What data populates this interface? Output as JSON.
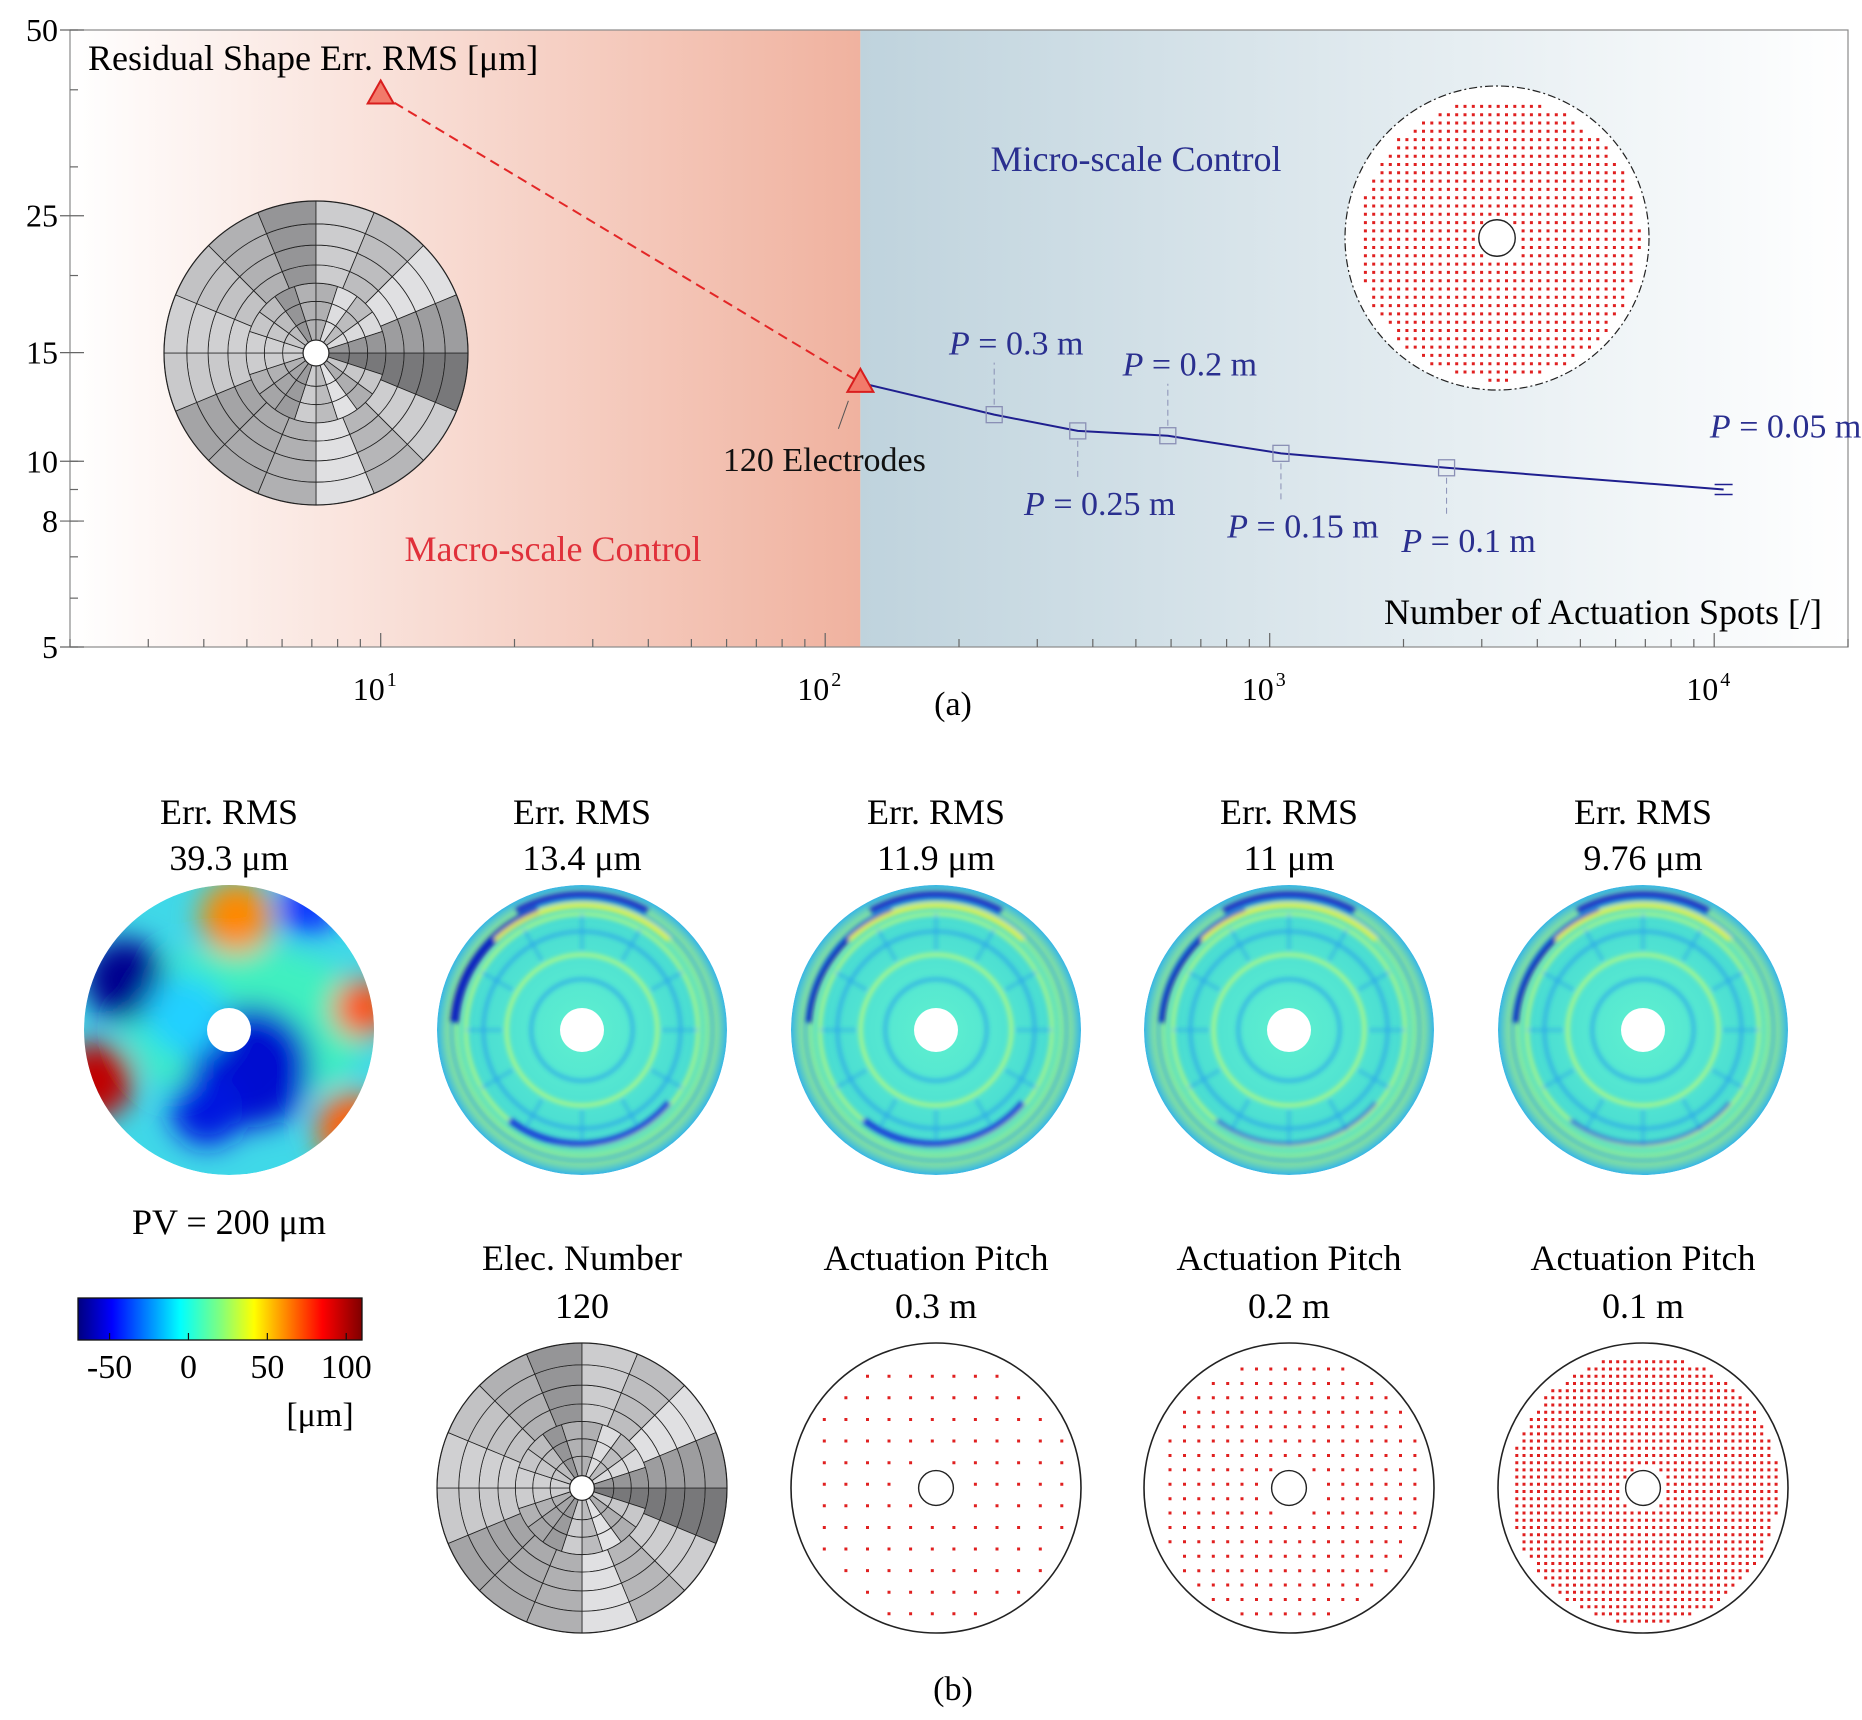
{
  "chart_data": [
    {
      "type": "line",
      "panel_label": "(a)",
      "ylabel": "Residual Shape Err. RMS [μm]",
      "xlabel": "Number of Actuation Spots [/]",
      "x_scale": "log",
      "y_scale": "log",
      "xlim": [
        2,
        20000
      ],
      "ylim": [
        5,
        50
      ],
      "x_ticks": [
        {
          "value": 10,
          "base": "10",
          "exp": "1"
        },
        {
          "value": 100,
          "base": "10",
          "exp": "2"
        },
        {
          "value": 1000,
          "base": "10",
          "exp": "3"
        },
        {
          "value": 10000,
          "base": "10",
          "exp": "4"
        }
      ],
      "y_ticks": [
        {
          "value": 5,
          "label": "5"
        },
        {
          "value": 8,
          "label": "8"
        },
        {
          "value": 10,
          "label": "10"
        },
        {
          "value": 15,
          "label": "15"
        },
        {
          "value": 25,
          "label": "25"
        },
        {
          "value": 50,
          "label": "50"
        }
      ],
      "regions": [
        {
          "label": "Macro-scale Control",
          "x_range": [
            2,
            120
          ],
          "color": "#e8836a"
        },
        {
          "label": "Micro-scale Control",
          "x_range": [
            120,
            20000
          ],
          "color": "#9fbccb"
        }
      ],
      "series": [
        {
          "marker": "triangle",
          "line": "dashed",
          "color": "#e32626",
          "points": [
            {
              "x": 10,
              "y": 39.3
            },
            {
              "x": 120,
              "y": 13.4,
              "annotation": "120 Electrodes"
            }
          ]
        },
        {
          "marker": "square",
          "line": "solid",
          "color": "#1f1f8f",
          "points": [
            {
              "x": 120,
              "y": 13.4
            },
            {
              "x": 240,
              "y": 11.9,
              "annotation": "P = 0.3 m",
              "ann_pos": "above"
            },
            {
              "x": 370,
              "y": 11.2,
              "annotation": "P = 0.25 m",
              "ann_pos": "below"
            },
            {
              "x": 590,
              "y": 11.0,
              "annotation": "P = 0.2 m",
              "ann_pos": "above"
            },
            {
              "x": 1060,
              "y": 10.3,
              "annotation": "P = 0.15 m",
              "ann_pos": "below"
            },
            {
              "x": 2500,
              "y": 9.76,
              "annotation": "P = 0.1 m",
              "ann_pos": "below"
            },
            {
              "x": 10500,
              "y": 9.0,
              "annotation": "P = 0.05 m",
              "ann_pos": "above"
            }
          ]
        }
      ]
    },
    {
      "type": "heatmap",
      "panel_label": "(b)",
      "maps": [
        {
          "title": "Err. RMS",
          "value": "39.3 μm"
        },
        {
          "title": "Err. RMS",
          "value": "13.4 μm"
        },
        {
          "title": "Err. RMS",
          "value": "11.9 μm"
        },
        {
          "title": "Err. RMS",
          "value": "11 μm"
        },
        {
          "title": "Err. RMS",
          "value": "9.76 μm"
        }
      ],
      "pv_label": "PV = 200 μm",
      "colorbar": {
        "range": [
          -70,
          110
        ],
        "ticks": [
          -50,
          0,
          50,
          100
        ],
        "unit": "[μm]",
        "colormap": "jet"
      },
      "layouts": [
        {
          "title": "Elec. Number",
          "value": "120",
          "kind": "electrodes"
        },
        {
          "title": "Actuation Pitch",
          "value": "0.3 m",
          "kind": "dots",
          "pitch": 0.3
        },
        {
          "title": "Actuation Pitch",
          "value": "0.2 m",
          "kind": "dots",
          "pitch": 0.2
        },
        {
          "title": "Actuation Pitch",
          "value": "0.1 m",
          "kind": "dots",
          "pitch": 0.1
        }
      ]
    }
  ]
}
